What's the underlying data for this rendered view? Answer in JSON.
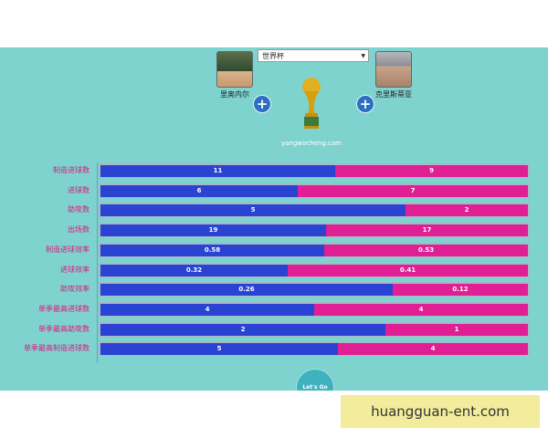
{
  "header": {
    "player_left": "里奥内尔",
    "player_right": "克里斯蒂亚",
    "tournament": "世界杯",
    "site": "yangwocheng.com"
  },
  "colors": {
    "left": "#2b43d3",
    "right": "#df1f93",
    "track": "#aab6c7"
  },
  "chart_data": {
    "type": "bar",
    "categories": [
      "制造进球数",
      "进球数",
      "助攻数",
      "出场数",
      "制造进球效率",
      "进球效率",
      "助攻效率",
      "单季最高进球数",
      "单季最高助攻数",
      "单季最高制造进球数"
    ],
    "series": [
      {
        "name": "里奥内尔",
        "values": [
          11,
          6,
          5,
          19,
          0.58,
          0.32,
          0.26,
          4,
          2,
          5
        ]
      },
      {
        "name": "克里斯蒂亚",
        "values": [
          9,
          7,
          2,
          17,
          0.53,
          0.41,
          0.12,
          4,
          1,
          4
        ]
      }
    ],
    "value_labels_left": [
      "11",
      "6",
      "5",
      "19",
      "0.58",
      "0.32",
      "0.26",
      "4",
      "2",
      "5"
    ],
    "value_labels_right": [
      "9",
      "7",
      "2",
      "17",
      "0.53",
      "0.41",
      "0.12",
      "4",
      "1",
      "4"
    ]
  },
  "footer": {
    "go_button": "Let's Go"
  },
  "watermark": "huangguan-ent.com"
}
